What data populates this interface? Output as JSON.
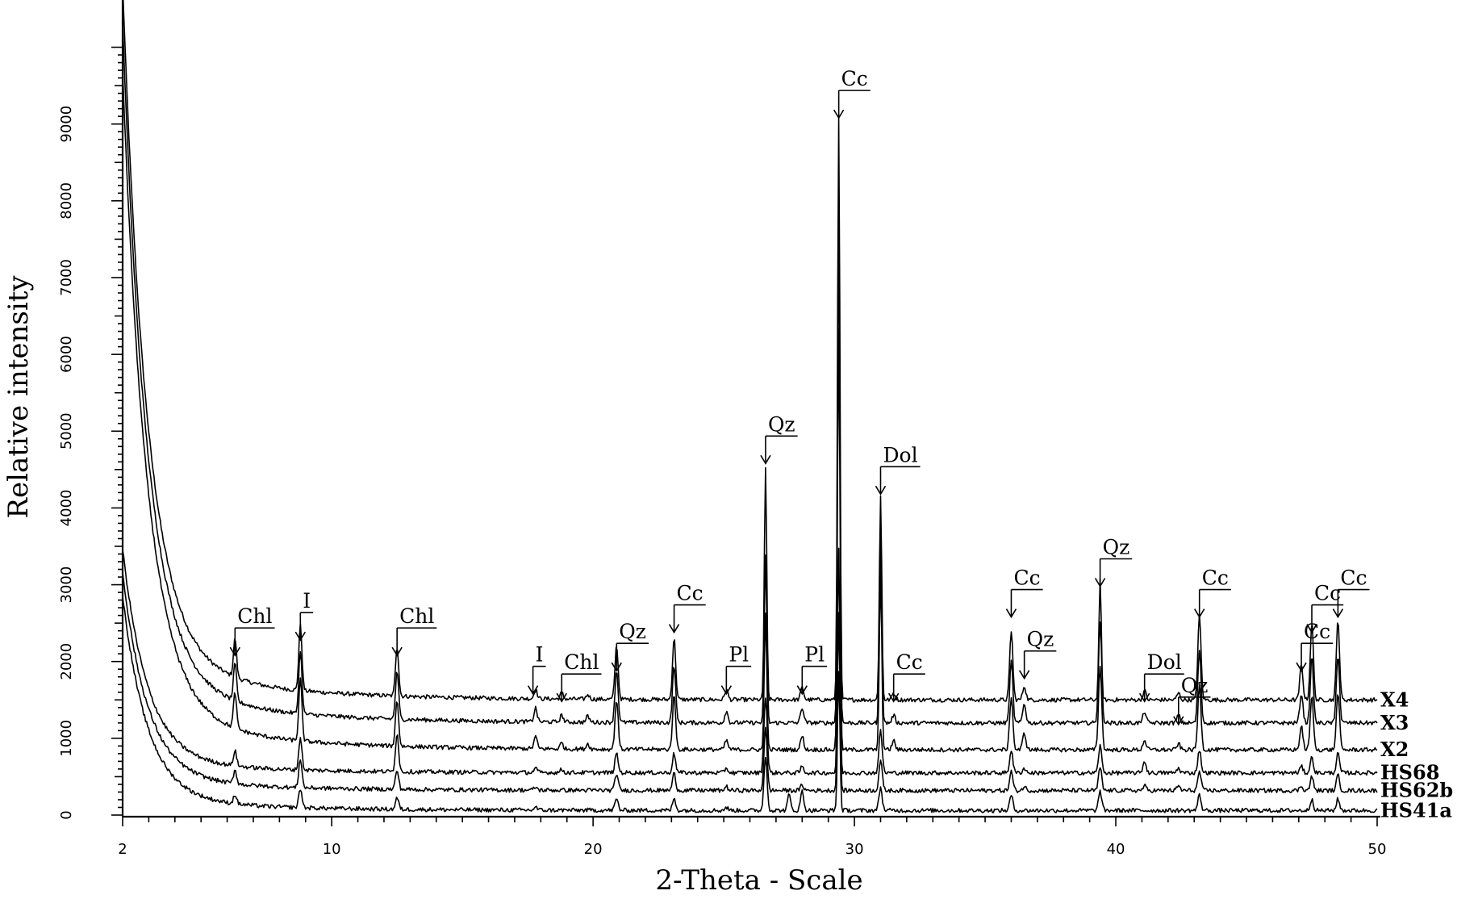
{
  "chart_data": {
    "type": "line",
    "title": "",
    "xlabel": "2-Theta - Scale",
    "ylabel": "Relative intensity",
    "xlim": [
      2,
      50
    ],
    "ylim": [
      0,
      10300
    ],
    "xticks": [
      2,
      10,
      20,
      30,
      40,
      50
    ],
    "xtick_labels": [
      "2",
      "10",
      "20",
      "30",
      "40",
      "50"
    ],
    "yticks": [
      0,
      1000,
      2000,
      3000,
      4000,
      5000,
      6000,
      7000,
      8000,
      9000
    ],
    "ytick_labels": [
      "0",
      "1000",
      "2000",
      "3000",
      "4000",
      "5000",
      "6000",
      "7000",
      "8000",
      "9000"
    ],
    "grid": false,
    "legend": "labels at right end of each trace",
    "series": [
      {
        "name": "X4",
        "baseline": 1500,
        "low_angle_start": 10300,
        "peaks": [
          [
            6.3,
            500
          ],
          [
            8.8,
            850
          ],
          [
            12.5,
            650
          ],
          [
            17.8,
            120
          ],
          [
            18.8,
            80
          ],
          [
            19.8,
            60
          ],
          [
            20.9,
            700
          ],
          [
            23.1,
            800
          ],
          [
            25.1,
            130
          ],
          [
            26.6,
            3000
          ],
          [
            28.0,
            160
          ],
          [
            29.4,
            7600
          ],
          [
            31.0,
            2650
          ],
          [
            31.5,
            90
          ],
          [
            36.0,
            900
          ],
          [
            36.5,
            180
          ],
          [
            39.4,
            1550
          ],
          [
            41.1,
            120
          ],
          [
            42.4,
            90
          ],
          [
            43.2,
            1100
          ],
          [
            47.1,
            450
          ],
          [
            47.5,
            1000
          ],
          [
            48.5,
            1050
          ]
        ]
      },
      {
        "name": "X3",
        "baseline": 1200,
        "low_angle_start": 9800,
        "peaks": [
          [
            6.3,
            480
          ],
          [
            8.8,
            820
          ],
          [
            12.5,
            620
          ],
          [
            17.8,
            180
          ],
          [
            18.8,
            90
          ],
          [
            19.8,
            80
          ],
          [
            20.9,
            680
          ],
          [
            23.1,
            750
          ],
          [
            25.1,
            150
          ],
          [
            26.6,
            2200
          ],
          [
            28.0,
            200
          ],
          [
            29.4,
            6500
          ],
          [
            31.0,
            2500
          ],
          [
            31.5,
            100
          ],
          [
            36.0,
            800
          ],
          [
            36.5,
            250
          ],
          [
            39.4,
            1300
          ],
          [
            41.1,
            150
          ],
          [
            42.4,
            100
          ],
          [
            43.2,
            950
          ],
          [
            47.1,
            380
          ],
          [
            47.5,
            850
          ],
          [
            48.5,
            900
          ]
        ]
      },
      {
        "name": "X2",
        "baseline": 850,
        "low_angle_start": 9200,
        "peaks": [
          [
            6.3,
            460
          ],
          [
            8.8,
            800
          ],
          [
            12.5,
            600
          ],
          [
            17.8,
            160
          ],
          [
            18.8,
            80
          ],
          [
            19.8,
            70
          ],
          [
            20.9,
            650
          ],
          [
            23.1,
            700
          ],
          [
            25.1,
            120
          ],
          [
            26.6,
            1800
          ],
          [
            28.0,
            180
          ],
          [
            29.4,
            5500
          ],
          [
            31.0,
            2300
          ],
          [
            31.5,
            120
          ],
          [
            36.0,
            700
          ],
          [
            36.5,
            220
          ],
          [
            39.4,
            1100
          ],
          [
            41.1,
            130
          ],
          [
            42.4,
            80
          ],
          [
            43.2,
            850
          ],
          [
            47.1,
            300
          ],
          [
            47.5,
            700
          ],
          [
            48.5,
            750
          ]
        ]
      },
      {
        "name": "HS68",
        "baseline": 550,
        "low_angle_start": 3300,
        "peaks": [
          [
            6.3,
            200
          ],
          [
            8.8,
            420
          ],
          [
            12.5,
            500
          ],
          [
            17.8,
            50
          ],
          [
            18.8,
            40
          ],
          [
            20.9,
            250
          ],
          [
            23.1,
            250
          ],
          [
            25.1,
            60
          ],
          [
            26.6,
            1000
          ],
          [
            28.0,
            80
          ],
          [
            29.4,
            2900
          ],
          [
            31.0,
            550
          ],
          [
            36.0,
            300
          ],
          [
            36.5,
            60
          ],
          [
            39.4,
            350
          ],
          [
            41.1,
            150
          ],
          [
            42.4,
            60
          ],
          [
            43.2,
            300
          ],
          [
            47.1,
            80
          ],
          [
            47.5,
            200
          ],
          [
            48.5,
            250
          ]
        ]
      },
      {
        "name": "HS62b",
        "baseline": 320,
        "low_angle_start": 3000,
        "peaks": [
          [
            6.3,
            180
          ],
          [
            8.8,
            380
          ],
          [
            12.5,
            250
          ],
          [
            17.8,
            40
          ],
          [
            20.9,
            220
          ],
          [
            23.1,
            220
          ],
          [
            25.1,
            50
          ],
          [
            26.6,
            800
          ],
          [
            28.0,
            70
          ],
          [
            29.4,
            2300
          ],
          [
            31.0,
            400
          ],
          [
            36.0,
            250
          ],
          [
            36.5,
            50
          ],
          [
            39.4,
            300
          ],
          [
            41.1,
            60
          ],
          [
            42.4,
            60
          ],
          [
            43.2,
            250
          ],
          [
            47.1,
            60
          ],
          [
            47.5,
            180
          ],
          [
            48.5,
            200
          ]
        ]
      },
      {
        "name": "HS41a",
        "baseline": 60,
        "low_angle_start": 2700,
        "peaks": [
          [
            6.3,
            120
          ],
          [
            8.8,
            250
          ],
          [
            12.5,
            150
          ],
          [
            17.8,
            40
          ],
          [
            20.9,
            150
          ],
          [
            23.1,
            150
          ],
          [
            25.1,
            40
          ],
          [
            26.6,
            700
          ],
          [
            27.5,
            200
          ],
          [
            28.0,
            250
          ],
          [
            29.4,
            1800
          ],
          [
            31.0,
            300
          ],
          [
            36.0,
            200
          ],
          [
            39.4,
            250
          ],
          [
            43.2,
            200
          ],
          [
            47.5,
            150
          ],
          [
            48.5,
            150
          ]
        ]
      }
    ],
    "annotations": [
      {
        "text": "Chl",
        "x": 6.3,
        "y": 2500
      },
      {
        "text": "I",
        "x": 8.8,
        "y": 2700
      },
      {
        "text": "Chl",
        "x": 12.5,
        "y": 2500
      },
      {
        "text": "I",
        "x": 17.7,
        "y": 2000
      },
      {
        "text": "Chl",
        "x": 18.8,
        "y": 1900
      },
      {
        "text": "Qz",
        "x": 20.9,
        "y": 2300
      },
      {
        "text": "Cc",
        "x": 23.1,
        "y": 2800
      },
      {
        "text": "Pl",
        "x": 25.1,
        "y": 2000
      },
      {
        "text": "Qz",
        "x": 26.6,
        "y": 5000
      },
      {
        "text": "Pl",
        "x": 28.0,
        "y": 2000
      },
      {
        "text": "Cc",
        "x": 29.4,
        "y": 9500
      },
      {
        "text": "Dol",
        "x": 31.0,
        "y": 4600
      },
      {
        "text": "Cc",
        "x": 31.5,
        "y": 1900
      },
      {
        "text": "Cc",
        "x": 36.0,
        "y": 3000
      },
      {
        "text": "Qz",
        "x": 36.5,
        "y": 2200
      },
      {
        "text": "Qz",
        "x": 39.4,
        "y": 3400
      },
      {
        "text": "Dol",
        "x": 41.1,
        "y": 1900
      },
      {
        "text": "Qz",
        "x": 42.4,
        "y": 1600
      },
      {
        "text": "Cc",
        "x": 43.2,
        "y": 3000
      },
      {
        "text": "Cc",
        "x": 47.1,
        "y": 2300
      },
      {
        "text": "Cc",
        "x": 47.5,
        "y": 2800
      },
      {
        "text": "Cc",
        "x": 48.5,
        "y": 3000
      }
    ]
  }
}
